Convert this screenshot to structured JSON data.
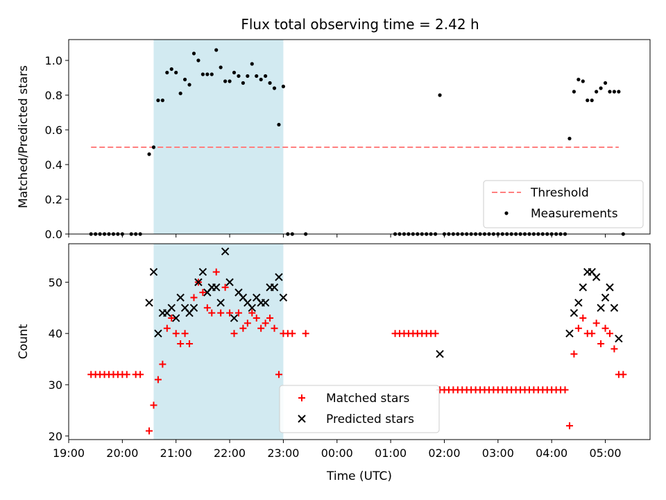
{
  "figure_title": "Flux total observing time = 2.42 h",
  "chart_data": [
    {
      "type": "scatter",
      "title": "Flux total observing time = 2.42 h",
      "xlabel": "",
      "ylabel": "Matched/Predicted stars",
      "xlim": [
        "19:00",
        "05:50"
      ],
      "ylim": [
        0,
        1.12
      ],
      "yticks": [
        0.0,
        0.2,
        0.4,
        0.6,
        0.8,
        1.0
      ],
      "ytick_labels": [
        "0.0",
        "0.2",
        "0.4",
        "0.6",
        "0.8",
        "1.0"
      ],
      "highlight_span": {
        "start": "20:35",
        "end": "23:00",
        "color": "#add8e6"
      },
      "threshold": {
        "name": "Threshold",
        "y": 0.5,
        "x_start": "19:25",
        "x_end": "05:15",
        "color": "#ff7f7f",
        "style": "dashed"
      },
      "legend": {
        "position": "lower-right",
        "entries": [
          "Threshold",
          "Measurements"
        ]
      },
      "series": [
        {
          "name": "Measurements",
          "marker": "dot",
          "color": "#000000",
          "points": [
            [
              "19:25",
              0
            ],
            [
              "19:30",
              0
            ],
            [
              "19:35",
              0
            ],
            [
              "19:40",
              0
            ],
            [
              "19:45",
              0
            ],
            [
              "19:50",
              0
            ],
            [
              "19:55",
              0
            ],
            [
              "20:00",
              0
            ],
            [
              "20:10",
              0
            ],
            [
              "20:15",
              0
            ],
            [
              "20:20",
              0
            ],
            [
              "20:30",
              0.46
            ],
            [
              "20:35",
              0.5
            ],
            [
              "20:40",
              0.77
            ],
            [
              "20:45",
              0.77
            ],
            [
              "20:50",
              0.93
            ],
            [
              "20:55",
              0.95
            ],
            [
              "21:00",
              0.93
            ],
            [
              "21:05",
              0.81
            ],
            [
              "21:10",
              0.89
            ],
            [
              "21:15",
              0.86
            ],
            [
              "21:20",
              1.04
            ],
            [
              "21:25",
              1.0
            ],
            [
              "21:30",
              0.92
            ],
            [
              "21:35",
              0.92
            ],
            [
              "21:40",
              0.92
            ],
            [
              "21:45",
              1.06
            ],
            [
              "21:50",
              0.96
            ],
            [
              "21:55",
              0.88
            ],
            [
              "22:00",
              0.88
            ],
            [
              "22:05",
              0.93
            ],
            [
              "22:10",
              0.91
            ],
            [
              "22:15",
              0.87
            ],
            [
              "22:20",
              0.91
            ],
            [
              "22:25",
              0.98
            ],
            [
              "22:30",
              0.91
            ],
            [
              "22:35",
              0.89
            ],
            [
              "22:40",
              0.91
            ],
            [
              "22:45",
              0.87
            ],
            [
              "22:50",
              0.84
            ],
            [
              "22:55",
              0.63
            ],
            [
              "23:00",
              0.85
            ],
            [
              "23:05",
              0
            ],
            [
              "23:10",
              0
            ],
            [
              "23:25",
              0
            ],
            [
              "01:05",
              0
            ],
            [
              "01:10",
              0
            ],
            [
              "01:15",
              0
            ],
            [
              "01:20",
              0
            ],
            [
              "01:25",
              0
            ],
            [
              "01:30",
              0
            ],
            [
              "01:35",
              0
            ],
            [
              "01:40",
              0
            ],
            [
              "01:45",
              0
            ],
            [
              "01:50",
              0
            ],
            [
              "01:55",
              0.8
            ],
            [
              "02:00",
              0
            ],
            [
              "02:05",
              0
            ],
            [
              "02:10",
              0
            ],
            [
              "02:15",
              0
            ],
            [
              "02:20",
              0
            ],
            [
              "02:25",
              0
            ],
            [
              "02:30",
              0
            ],
            [
              "02:35",
              0
            ],
            [
              "02:40",
              0
            ],
            [
              "02:45",
              0
            ],
            [
              "02:50",
              0
            ],
            [
              "02:55",
              0
            ],
            [
              "03:00",
              0
            ],
            [
              "03:05",
              0
            ],
            [
              "03:10",
              0
            ],
            [
              "03:15",
              0
            ],
            [
              "03:20",
              0
            ],
            [
              "03:25",
              0
            ],
            [
              "03:30",
              0
            ],
            [
              "03:35",
              0
            ],
            [
              "03:40",
              0
            ],
            [
              "03:45",
              0
            ],
            [
              "03:50",
              0
            ],
            [
              "03:55",
              0
            ],
            [
              "04:00",
              0
            ],
            [
              "04:05",
              0
            ],
            [
              "04:10",
              0
            ],
            [
              "04:15",
              0
            ],
            [
              "04:20",
              0.55
            ],
            [
              "04:25",
              0.82
            ],
            [
              "04:30",
              0.89
            ],
            [
              "04:35",
              0.88
            ],
            [
              "04:40",
              0.77
            ],
            [
              "04:45",
              0.77
            ],
            [
              "04:50",
              0.82
            ],
            [
              "04:55",
              0.84
            ],
            [
              "05:00",
              0.87
            ],
            [
              "05:05",
              0.82
            ],
            [
              "05:10",
              0.82
            ],
            [
              "05:15",
              0.82
            ],
            [
              "05:20",
              0
            ]
          ]
        }
      ]
    },
    {
      "type": "scatter",
      "title": "",
      "xlabel": "Time (UTC)",
      "ylabel": "Count",
      "xlim": [
        "19:00",
        "05:50"
      ],
      "ylim": [
        19.3,
        57.5
      ],
      "yticks": [
        20,
        30,
        40,
        50
      ],
      "ytick_labels": [
        "20",
        "30",
        "40",
        "50"
      ],
      "xticks": [
        "19:00",
        "20:00",
        "21:00",
        "22:00",
        "23:00",
        "00:00",
        "01:00",
        "02:00",
        "03:00",
        "04:00",
        "05:00"
      ],
      "highlight_span": {
        "start": "20:35",
        "end": "23:00",
        "color": "#add8e6"
      },
      "legend": {
        "position": "lower-center",
        "entries": [
          "Matched stars",
          "Predicted stars"
        ]
      },
      "series": [
        {
          "name": "Matched stars",
          "marker": "plus",
          "color": "#ff0000",
          "points": [
            [
              "19:25",
              32
            ],
            [
              "19:30",
              32
            ],
            [
              "19:35",
              32
            ],
            [
              "19:40",
              32
            ],
            [
              "19:45",
              32
            ],
            [
              "19:50",
              32
            ],
            [
              "19:55",
              32
            ],
            [
              "20:00",
              32
            ],
            [
              "20:05",
              32
            ],
            [
              "20:15",
              32
            ],
            [
              "20:20",
              32
            ],
            [
              "20:30",
              21
            ],
            [
              "20:35",
              26
            ],
            [
              "20:40",
              31
            ],
            [
              "20:45",
              34
            ],
            [
              "20:50",
              41
            ],
            [
              "20:55",
              43
            ],
            [
              "21:00",
              40
            ],
            [
              "21:05",
              38
            ],
            [
              "21:10",
              40
            ],
            [
              "21:15",
              38
            ],
            [
              "21:20",
              47
            ],
            [
              "21:25",
              50
            ],
            [
              "21:30",
              48
            ],
            [
              "21:35",
              45
            ],
            [
              "21:40",
              44
            ],
            [
              "21:45",
              52
            ],
            [
              "21:50",
              44
            ],
            [
              "21:55",
              49
            ],
            [
              "22:00",
              44
            ],
            [
              "22:05",
              40
            ],
            [
              "22:10",
              44
            ],
            [
              "22:15",
              41
            ],
            [
              "22:20",
              42
            ],
            [
              "22:25",
              44
            ],
            [
              "22:30",
              43
            ],
            [
              "22:35",
              41
            ],
            [
              "22:40",
              42
            ],
            [
              "22:45",
              43
            ],
            [
              "22:50",
              41
            ],
            [
              "22:55",
              32
            ],
            [
              "23:00",
              40
            ],
            [
              "23:05",
              40
            ],
            [
              "23:10",
              40
            ],
            [
              "23:25",
              40
            ],
            [
              "01:05",
              40
            ],
            [
              "01:10",
              40
            ],
            [
              "01:15",
              40
            ],
            [
              "01:20",
              40
            ],
            [
              "01:25",
              40
            ],
            [
              "01:30",
              40
            ],
            [
              "01:35",
              40
            ],
            [
              "01:40",
              40
            ],
            [
              "01:45",
              40
            ],
            [
              "01:50",
              40
            ],
            [
              "01:55",
              29
            ],
            [
              "02:00",
              29
            ],
            [
              "02:05",
              29
            ],
            [
              "02:10",
              29
            ],
            [
              "02:15",
              29
            ],
            [
              "02:20",
              29
            ],
            [
              "02:25",
              29
            ],
            [
              "02:30",
              29
            ],
            [
              "02:35",
              29
            ],
            [
              "02:40",
              29
            ],
            [
              "02:45",
              29
            ],
            [
              "02:50",
              29
            ],
            [
              "02:55",
              29
            ],
            [
              "03:00",
              29
            ],
            [
              "03:05",
              29
            ],
            [
              "03:10",
              29
            ],
            [
              "03:15",
              29
            ],
            [
              "03:20",
              29
            ],
            [
              "03:25",
              29
            ],
            [
              "03:30",
              29
            ],
            [
              "03:35",
              29
            ],
            [
              "03:40",
              29
            ],
            [
              "03:45",
              29
            ],
            [
              "03:50",
              29
            ],
            [
              "03:55",
              29
            ],
            [
              "04:00",
              29
            ],
            [
              "04:05",
              29
            ],
            [
              "04:10",
              29
            ],
            [
              "04:15",
              29
            ],
            [
              "04:20",
              22
            ],
            [
              "04:25",
              36
            ],
            [
              "04:30",
              41
            ],
            [
              "04:35",
              43
            ],
            [
              "04:40",
              40
            ],
            [
              "04:45",
              40
            ],
            [
              "04:50",
              42
            ],
            [
              "04:55",
              38
            ],
            [
              "05:00",
              41
            ],
            [
              "05:05",
              40
            ],
            [
              "05:10",
              37
            ],
            [
              "05:15",
              32
            ],
            [
              "05:20",
              32
            ]
          ]
        },
        {
          "name": "Predicted stars",
          "marker": "x",
          "color": "#000000",
          "points": [
            [
              "20:30",
              46
            ],
            [
              "20:35",
              52
            ],
            [
              "20:40",
              40
            ],
            [
              "20:45",
              44
            ],
            [
              "20:50",
              44
            ],
            [
              "20:55",
              45
            ],
            [
              "21:00",
              43
            ],
            [
              "21:05",
              47
            ],
            [
              "21:10",
              45
            ],
            [
              "21:15",
              44
            ],
            [
              "21:20",
              45
            ],
            [
              "21:25",
              50
            ],
            [
              "21:30",
              52
            ],
            [
              "21:35",
              48
            ],
            [
              "21:40",
              49
            ],
            [
              "21:45",
              49
            ],
            [
              "21:50",
              46
            ],
            [
              "21:55",
              56
            ],
            [
              "22:00",
              50
            ],
            [
              "22:05",
              43
            ],
            [
              "22:10",
              48
            ],
            [
              "22:15",
              47
            ],
            [
              "22:20",
              46
            ],
            [
              "22:25",
              45
            ],
            [
              "22:30",
              47
            ],
            [
              "22:35",
              46
            ],
            [
              "22:40",
              46
            ],
            [
              "22:45",
              49
            ],
            [
              "22:50",
              49
            ],
            [
              "22:55",
              51
            ],
            [
              "23:00",
              47
            ],
            [
              "01:55",
              36
            ],
            [
              "04:20",
              40
            ],
            [
              "04:25",
              44
            ],
            [
              "04:30",
              46
            ],
            [
              "04:35",
              49
            ],
            [
              "04:40",
              52
            ],
            [
              "04:45",
              52
            ],
            [
              "04:50",
              51
            ],
            [
              "04:55",
              45
            ],
            [
              "05:00",
              47
            ],
            [
              "05:05",
              49
            ],
            [
              "05:10",
              45
            ],
            [
              "05:15",
              39
            ]
          ]
        }
      ]
    }
  ]
}
